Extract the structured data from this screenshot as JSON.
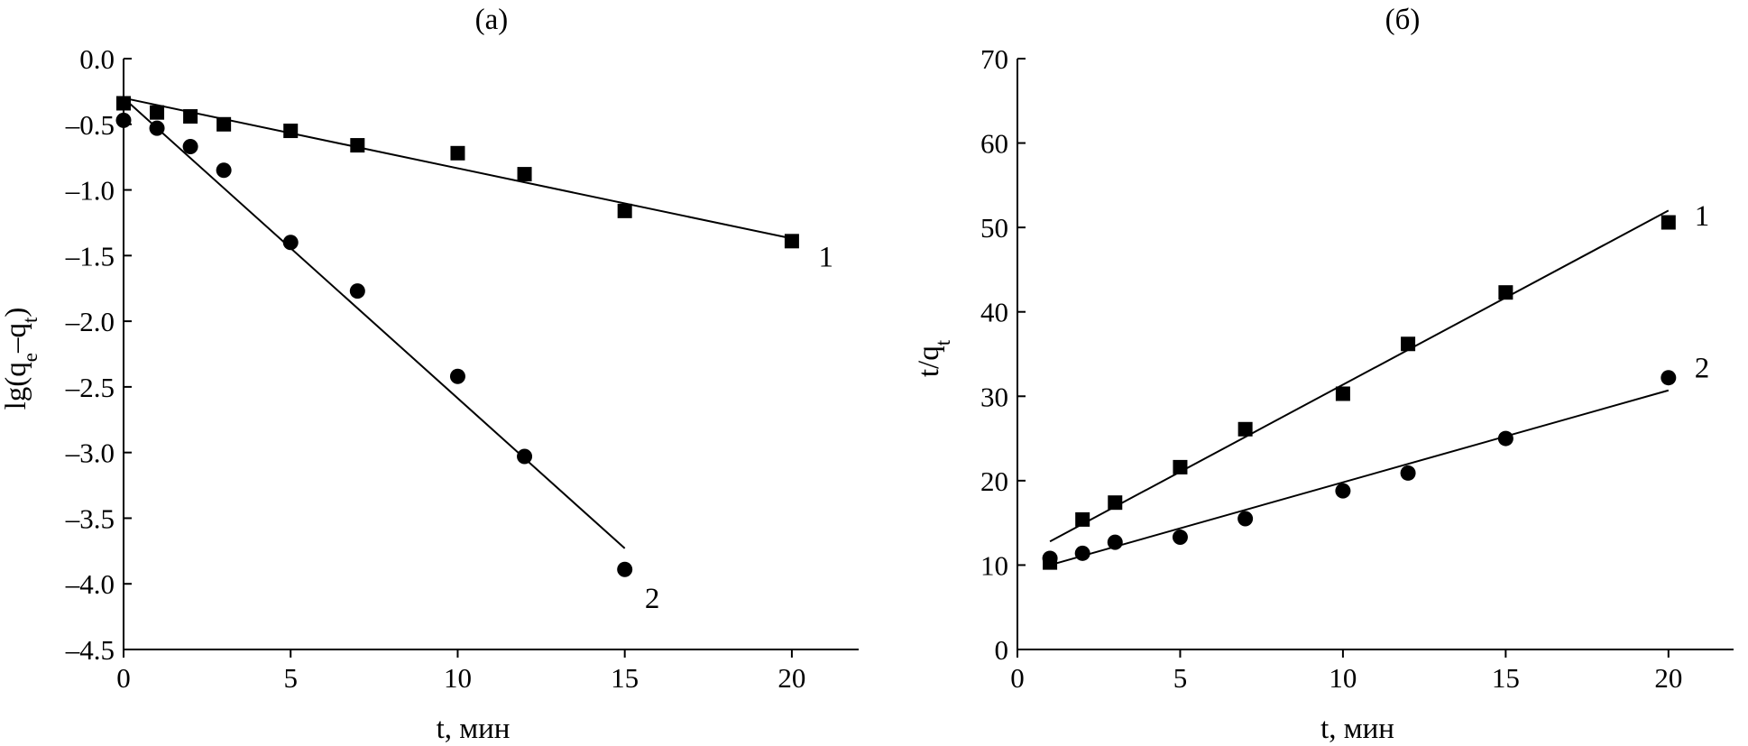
{
  "chart_data": [
    {
      "id": "a",
      "type": "scatter",
      "title": "(а)",
      "xlabel": "t, мин",
      "ylabel_parts": [
        "lg(q",
        "e",
        "–q",
        "t",
        ")"
      ],
      "xlim": [
        0,
        22
      ],
      "ylim": [
        -4.5,
        0
      ],
      "xticks": [
        0,
        5,
        10,
        15,
        20
      ],
      "yticks": [
        0,
        -0.5,
        -1.0,
        -1.5,
        -2.0,
        -2.5,
        -3.0,
        -3.5,
        -4.0,
        -4.5
      ],
      "ytick_labels": [
        "0.0",
        "–0.5",
        "–1.0",
        "–1.5",
        "–2.0",
        "–2.5",
        "–3.0",
        "–3.5",
        "–4.0",
        "–4.5"
      ],
      "series": [
        {
          "name": "1",
          "marker": "square",
          "x": [
            0,
            1,
            2,
            3,
            5,
            7,
            10,
            12,
            15,
            20
          ],
          "y": [
            -0.34,
            -0.41,
            -0.44,
            -0.5,
            -0.55,
            -0.66,
            -0.72,
            -0.88,
            -1.16,
            -1.39
          ],
          "fit": {
            "x": [
              0,
              20
            ],
            "y": [
              -0.3,
              -1.37
            ]
          },
          "label_at": {
            "x": 20.8,
            "y": -1.5
          }
        },
        {
          "name": "2",
          "marker": "circle",
          "x": [
            0,
            1,
            2,
            3,
            5,
            7,
            10,
            12,
            15
          ],
          "y": [
            -0.47,
            -0.53,
            -0.67,
            -0.85,
            -1.4,
            -1.77,
            -2.42,
            -3.03,
            -3.89
          ],
          "fit": {
            "x": [
              0,
              15
            ],
            "y": [
              -0.3,
              -3.73
            ]
          },
          "label_at": {
            "x": 15.6,
            "y": -4.1
          }
        }
      ]
    },
    {
      "id": "b",
      "type": "scatter",
      "title": "(б)",
      "xlabel": "t, мин",
      "ylabel_parts": [
        "t/q",
        "t"
      ],
      "xlim": [
        0,
        22
      ],
      "ylim": [
        0,
        70
      ],
      "xticks": [
        0,
        5,
        10,
        15,
        20
      ],
      "yticks": [
        0,
        10,
        20,
        30,
        40,
        50,
        60,
        70
      ],
      "ytick_labels": [
        "0",
        "10",
        "20",
        "30",
        "40",
        "50",
        "60",
        "70"
      ],
      "series": [
        {
          "name": "1",
          "marker": "square",
          "x": [
            1,
            2,
            3,
            5,
            7,
            10,
            12,
            15,
            20
          ],
          "y": [
            10.3,
            15.4,
            17.4,
            21.6,
            26.1,
            30.3,
            36.2,
            42.3,
            50.6
          ],
          "fit": {
            "x": [
              1,
              20
            ],
            "y": [
              12.8,
              52.0
            ]
          },
          "label_at": {
            "x": 20.8,
            "y": 51.5
          }
        },
        {
          "name": "2",
          "marker": "circle",
          "x": [
            1,
            2,
            3,
            5,
            7,
            10,
            12,
            15,
            20
          ],
          "y": [
            10.8,
            11.4,
            12.7,
            13.3,
            15.5,
            18.8,
            20.9,
            25.0,
            32.2
          ],
          "fit": {
            "x": [
              1,
              20
            ],
            "y": [
              10.0,
              30.7
            ]
          },
          "label_at": {
            "x": 20.8,
            "y": 33.5
          }
        }
      ]
    }
  ]
}
